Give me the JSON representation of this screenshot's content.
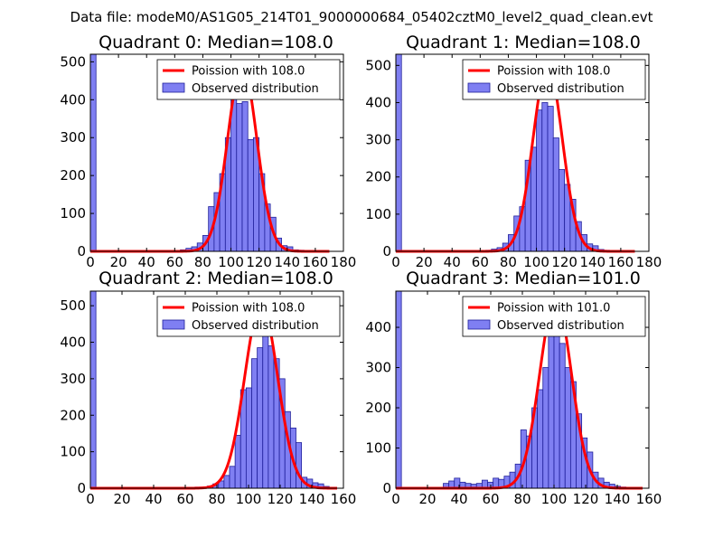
{
  "figure": {
    "suptitle": "Data file: modeM0/AS1G05_214T01_9000000684_05402cztM0_level2_quad_clean.evt"
  },
  "colors": {
    "bar_fill": "#7f7ff2",
    "bar_edge": "#1f1f9a",
    "curve": "#ff0000",
    "axis": "#000000",
    "legend_edge": "#000000"
  },
  "chart_data": [
    {
      "type": "bar",
      "title": "Quadrant 0: Median=108.0",
      "median": 108.0,
      "xlim": [
        0,
        180
      ],
      "ylim": [
        0,
        520
      ],
      "xticks": [
        0,
        20,
        40,
        60,
        80,
        100,
        120,
        140,
        160,
        180
      ],
      "yticks": [
        0,
        100,
        200,
        300,
        400,
        500
      ],
      "bin_width": 4,
      "legend": {
        "position": "upper right",
        "entries": [
          "Poission with 108.0",
          "Observed distribution"
        ]
      },
      "bars": [
        {
          "x": 0,
          "y": 520
        },
        {
          "x": 56,
          "y": 2
        },
        {
          "x": 60,
          "y": 2
        },
        {
          "x": 64,
          "y": 4
        },
        {
          "x": 68,
          "y": 8
        },
        {
          "x": 72,
          "y": 12
        },
        {
          "x": 76,
          "y": 22
        },
        {
          "x": 80,
          "y": 42
        },
        {
          "x": 84,
          "y": 118
        },
        {
          "x": 88,
          "y": 155
        },
        {
          "x": 92,
          "y": 205
        },
        {
          "x": 96,
          "y": 300
        },
        {
          "x": 100,
          "y": 405
        },
        {
          "x": 104,
          "y": 390
        },
        {
          "x": 108,
          "y": 395
        },
        {
          "x": 112,
          "y": 295
        },
        {
          "x": 116,
          "y": 300
        },
        {
          "x": 120,
          "y": 205
        },
        {
          "x": 124,
          "y": 125
        },
        {
          "x": 128,
          "y": 90
        },
        {
          "x": 132,
          "y": 35
        },
        {
          "x": 136,
          "y": 15
        },
        {
          "x": 140,
          "y": 12
        },
        {
          "x": 144,
          "y": 4
        },
        {
          "x": 148,
          "y": 3
        }
      ],
      "curve": {
        "mu": 108,
        "sigma": 10.4,
        "amplitude": 490,
        "x_range": [
          0,
          170
        ]
      }
    },
    {
      "type": "bar",
      "title": "Quadrant 1: Median=108.0",
      "median": 108.0,
      "xlim": [
        0,
        180
      ],
      "ylim": [
        0,
        530
      ],
      "xticks": [
        0,
        20,
        40,
        60,
        80,
        100,
        120,
        140,
        160,
        180
      ],
      "yticks": [
        0,
        100,
        200,
        300,
        400,
        500
      ],
      "bin_width": 4,
      "legend": {
        "position": "upper right",
        "entries": [
          "Poission with 108.0",
          "Observed distribution"
        ]
      },
      "bars": [
        {
          "x": 0,
          "y": 530
        },
        {
          "x": 60,
          "y": 2
        },
        {
          "x": 64,
          "y": 3
        },
        {
          "x": 68,
          "y": 6
        },
        {
          "x": 72,
          "y": 10
        },
        {
          "x": 76,
          "y": 22
        },
        {
          "x": 80,
          "y": 45
        },
        {
          "x": 84,
          "y": 95
        },
        {
          "x": 88,
          "y": 120
        },
        {
          "x": 92,
          "y": 245
        },
        {
          "x": 96,
          "y": 280
        },
        {
          "x": 100,
          "y": 380
        },
        {
          "x": 104,
          "y": 400
        },
        {
          "x": 108,
          "y": 390
        },
        {
          "x": 112,
          "y": 305
        },
        {
          "x": 116,
          "y": 220
        },
        {
          "x": 120,
          "y": 180
        },
        {
          "x": 124,
          "y": 140
        },
        {
          "x": 128,
          "y": 80
        },
        {
          "x": 132,
          "y": 45
        },
        {
          "x": 136,
          "y": 20
        },
        {
          "x": 140,
          "y": 15
        },
        {
          "x": 144,
          "y": 5
        },
        {
          "x": 148,
          "y": 3
        }
      ],
      "curve": {
        "mu": 108,
        "sigma": 10.4,
        "amplitude": 500,
        "x_range": [
          0,
          170
        ]
      }
    },
    {
      "type": "bar",
      "title": "Quadrant 2: Median=108.0",
      "median": 108.0,
      "xlim": [
        0,
        160
      ],
      "ylim": [
        0,
        540
      ],
      "xticks": [
        0,
        20,
        40,
        60,
        80,
        100,
        120,
        140,
        160
      ],
      "yticks": [
        0,
        100,
        200,
        300,
        400,
        500
      ],
      "bin_width": 3.5,
      "legend": {
        "position": "upper right",
        "entries": [
          "Poission with 108.0",
          "Observed distribution"
        ]
      },
      "bars": [
        {
          "x": 0,
          "y": 540
        },
        {
          "x": 66,
          "y": 3
        },
        {
          "x": 70,
          "y": 3
        },
        {
          "x": 74,
          "y": 6
        },
        {
          "x": 77.5,
          "y": 12
        },
        {
          "x": 81,
          "y": 20
        },
        {
          "x": 84.5,
          "y": 35
        },
        {
          "x": 88,
          "y": 60
        },
        {
          "x": 91.5,
          "y": 145
        },
        {
          "x": 95,
          "y": 270
        },
        {
          "x": 98.5,
          "y": 275
        },
        {
          "x": 102,
          "y": 355
        },
        {
          "x": 105.5,
          "y": 385
        },
        {
          "x": 109,
          "y": 470
        },
        {
          "x": 112.5,
          "y": 390
        },
        {
          "x": 116,
          "y": 355
        },
        {
          "x": 119.5,
          "y": 300
        },
        {
          "x": 123,
          "y": 210
        },
        {
          "x": 126.5,
          "y": 165
        },
        {
          "x": 130,
          "y": 125
        },
        {
          "x": 133.5,
          "y": 30
        },
        {
          "x": 137,
          "y": 25
        },
        {
          "x": 140.5,
          "y": 15
        },
        {
          "x": 144,
          "y": 12
        },
        {
          "x": 147.5,
          "y": 5
        }
      ],
      "curve": {
        "mu": 108,
        "sigma": 10.4,
        "amplitude": 505,
        "x_range": [
          0,
          156
        ]
      }
    },
    {
      "type": "bar",
      "title": "Quadrant 3: Median=101.0",
      "median": 101.0,
      "xlim": [
        0,
        160
      ],
      "ylim": [
        0,
        490
      ],
      "xticks": [
        0,
        20,
        40,
        60,
        80,
        100,
        120,
        140,
        160
      ],
      "yticks": [
        0,
        100,
        200,
        300,
        400
      ],
      "bin_width": 3.5,
      "legend": {
        "position": "upper right",
        "entries": [
          "Poission with 101.0",
          "Observed distribution"
        ]
      },
      "bars": [
        {
          "x": 0,
          "y": 490
        },
        {
          "x": 27,
          "y": 2
        },
        {
          "x": 30,
          "y": 12
        },
        {
          "x": 33.5,
          "y": 18
        },
        {
          "x": 37,
          "y": 25
        },
        {
          "x": 40.5,
          "y": 15
        },
        {
          "x": 44,
          "y": 12
        },
        {
          "x": 47.5,
          "y": 10
        },
        {
          "x": 51,
          "y": 12
        },
        {
          "x": 54.5,
          "y": 20
        },
        {
          "x": 58,
          "y": 15
        },
        {
          "x": 61.5,
          "y": 25
        },
        {
          "x": 65,
          "y": 22
        },
        {
          "x": 68.5,
          "y": 30
        },
        {
          "x": 72,
          "y": 40
        },
        {
          "x": 75.5,
          "y": 60
        },
        {
          "x": 79,
          "y": 145
        },
        {
          "x": 82.5,
          "y": 130
        },
        {
          "x": 86,
          "y": 200
        },
        {
          "x": 89.5,
          "y": 245
        },
        {
          "x": 93,
          "y": 300
        },
        {
          "x": 96.5,
          "y": 395
        },
        {
          "x": 100,
          "y": 395
        },
        {
          "x": 103.5,
          "y": 360
        },
        {
          "x": 107,
          "y": 300
        },
        {
          "x": 110.5,
          "y": 265
        },
        {
          "x": 114,
          "y": 185
        },
        {
          "x": 117.5,
          "y": 125
        },
        {
          "x": 121,
          "y": 90
        },
        {
          "x": 124.5,
          "y": 40
        },
        {
          "x": 128,
          "y": 25
        },
        {
          "x": 131.5,
          "y": 15
        },
        {
          "x": 135,
          "y": 10
        },
        {
          "x": 138.5,
          "y": 5
        },
        {
          "x": 142,
          "y": 3
        }
      ],
      "curve": {
        "mu": 101,
        "sigma": 10.05,
        "amplitude": 470,
        "x_range": [
          0,
          156
        ]
      }
    }
  ]
}
